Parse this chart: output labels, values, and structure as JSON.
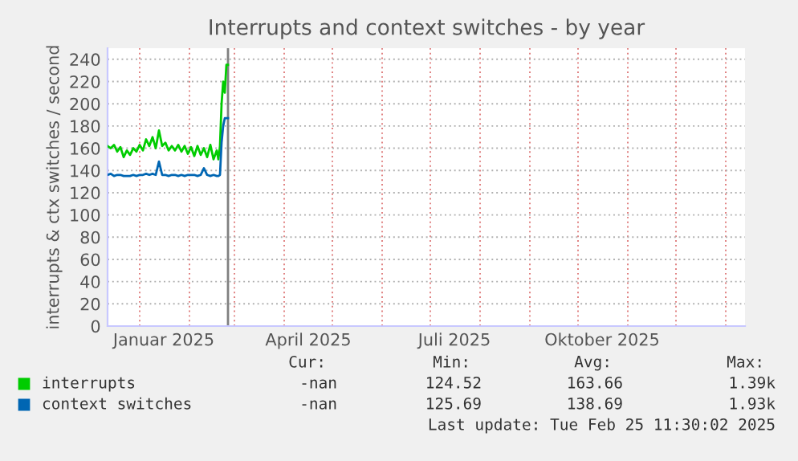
{
  "chart_data": {
    "type": "line",
    "title": "Interrupts and context switches - by year",
    "ylabel": "interrupts & ctx switches / second",
    "x": [
      "2024-12-12",
      "2024-12-14",
      "2024-12-16",
      "2024-12-18",
      "2024-12-20",
      "2024-12-22",
      "2024-12-24",
      "2024-12-26",
      "2024-12-28",
      "2024-12-30",
      "2025-01-01",
      "2025-01-03",
      "2025-01-05",
      "2025-01-07",
      "2025-01-09",
      "2025-01-11",
      "2025-01-13",
      "2025-01-15",
      "2025-01-17",
      "2025-01-19",
      "2025-01-21",
      "2025-01-23",
      "2025-01-25",
      "2025-01-27",
      "2025-01-29",
      "2025-01-31",
      "2025-02-02",
      "2025-02-04",
      "2025-02-06",
      "2025-02-08",
      "2025-02-10",
      "2025-02-12",
      "2025-02-14",
      "2025-02-16",
      "2025-02-18",
      "2025-02-19",
      "2025-02-20",
      "2025-02-21",
      "2025-02-22",
      "2025-02-23",
      "2025-02-24",
      "2025-02-25"
    ],
    "series": [
      {
        "name": "interrupts",
        "color": "#00cc00",
        "values": [
          162,
          160,
          163,
          157,
          161,
          152,
          158,
          154,
          160,
          157,
          163,
          158,
          168,
          162,
          170,
          160,
          176,
          162,
          165,
          158,
          162,
          158,
          163,
          157,
          162,
          155,
          161,
          153,
          162,
          154,
          160,
          152,
          163,
          150,
          158,
          150,
          162,
          200,
          220,
          210,
          235,
          235
        ]
      },
      {
        "name": "context switches",
        "color": "#0066b3",
        "values": [
          136,
          137,
          135,
          136,
          136,
          135,
          135,
          135,
          136,
          135,
          136,
          136,
          137,
          136,
          137,
          136,
          148,
          136,
          136,
          135,
          136,
          136,
          135,
          136,
          135,
          136,
          136,
          136,
          135,
          136,
          142,
          136,
          135,
          136,
          135,
          135,
          136,
          165,
          180,
          187,
          187,
          187
        ]
      }
    ],
    "xlim": [
      "2024-12-12",
      "2026-01-13"
    ],
    "xticks": [
      {
        "value": "2025-01-01",
        "label": null
      },
      {
        "value": "2025-01-16",
        "label": "Januar 2025"
      },
      {
        "value": "2025-02-01",
        "label": null
      },
      {
        "value": "2025-03-01",
        "label": null
      },
      {
        "value": "2025-04-01",
        "label": null
      },
      {
        "value": "2025-04-16",
        "label": "April 2025"
      },
      {
        "value": "2025-05-01",
        "label": null
      },
      {
        "value": "2025-06-01",
        "label": null
      },
      {
        "value": "2025-07-01",
        "label": null
      },
      {
        "value": "2025-07-16",
        "label": "Juli 2025"
      },
      {
        "value": "2025-08-01",
        "label": null
      },
      {
        "value": "2025-09-01",
        "label": null
      },
      {
        "value": "2025-10-01",
        "label": null
      },
      {
        "value": "2025-10-16",
        "label": "Oktober 2025"
      },
      {
        "value": "2025-11-01",
        "label": null
      },
      {
        "value": "2025-12-01",
        "label": null
      },
      {
        "value": "2026-01-01",
        "label": null
      }
    ],
    "ylim": [
      0,
      250
    ],
    "yticks": [
      0,
      20,
      40,
      60,
      80,
      100,
      120,
      140,
      160,
      180,
      200,
      220,
      240
    ],
    "ref_lines": [
      {
        "axis": "x",
        "value": "2025-02-25",
        "color": "#808080"
      }
    ],
    "grid": true,
    "legend": "bottom",
    "annotations": [
      "Cur:",
      "Min:",
      "Avg:",
      "Max:",
      "-nan",
      "124.52",
      "163.66",
      "1.39k",
      "-nan",
      "125.69",
      "138.69",
      "1.93k",
      "Last update: Tue Feb 25 11:30:02 2025"
    ]
  }
}
